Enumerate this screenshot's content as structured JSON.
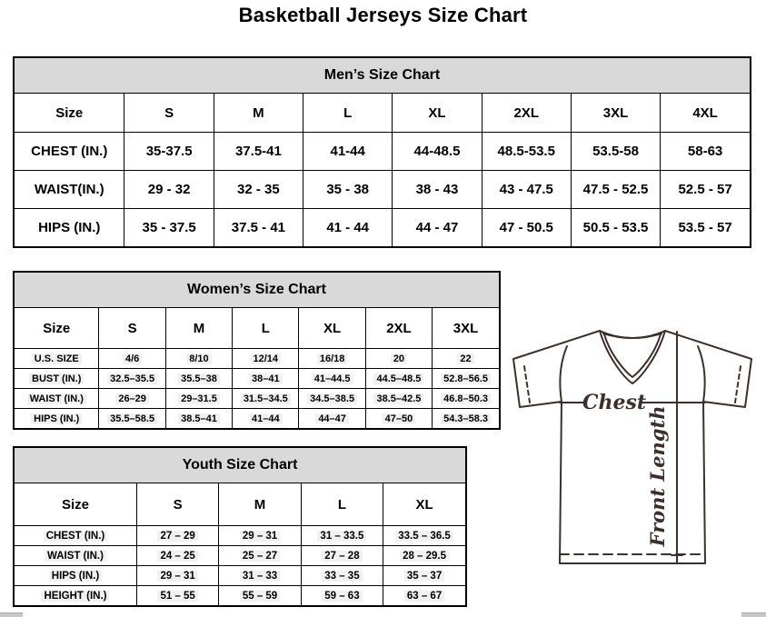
{
  "page": {
    "title": "Basketball Jerseys Size Chart"
  },
  "mens_table": {
    "title": "Men’s Size Chart",
    "header": [
      "Size",
      "S",
      "M",
      "L",
      "XL",
      "2XL",
      "3XL",
      "4XL"
    ],
    "rows": [
      {
        "label": "CHEST (IN.)",
        "values": [
          "35-37.5",
          "37.5-41",
          "41-44",
          "44-48.5",
          "48.5-53.5",
          "53.5-58",
          "58-63"
        ]
      },
      {
        "label": "WAIST(IN.)",
        "values": [
          "29 - 32",
          "32 - 35",
          "35 - 38",
          "38 - 43",
          "43 - 47.5",
          "47.5 - 52.5",
          "52.5 - 57"
        ]
      },
      {
        "label": "HIPS (IN.)",
        "values": [
          "35 - 37.5",
          "37.5 - 41",
          "41 - 44",
          "44 - 47",
          "47 - 50.5",
          "50.5 - 53.5",
          "53.5 - 57"
        ]
      }
    ]
  },
  "womens_table": {
    "title": "Women’s Size Chart",
    "header": [
      "Size",
      "S",
      "M",
      "L",
      "XL",
      "2XL",
      "3XL"
    ],
    "rows": [
      {
        "label": "U.S. SIZE",
        "values": [
          "4/6",
          "8/10",
          "12/14",
          "16/18",
          "20",
          "22"
        ]
      },
      {
        "label": "BUST (IN.)",
        "values": [
          "32.5–35.5",
          "35.5–38",
          "38–41",
          "41–44.5",
          "44.5–48.5",
          "52.8–56.5"
        ]
      },
      {
        "label": "WAIST (IN.)",
        "values": [
          "26–29",
          "29–31.5",
          "31.5–34.5",
          "34.5–38.5",
          "38.5–42.5",
          "46.8–50.3"
        ]
      },
      {
        "label": "HIPS (IN.)",
        "values": [
          "35.5–58.5",
          "38.5–41",
          "41–44",
          "44–47",
          "47–50",
          "54.3–58.3"
        ]
      }
    ]
  },
  "youth_table": {
    "title": "Youth Size Chart",
    "header": [
      "Size",
      "S",
      "M",
      "L",
      "XL"
    ],
    "rows": [
      {
        "label": "CHEST (IN.)",
        "values": [
          "27 – 29",
          "29 – 31",
          "31 – 33.5",
          "33.5 – 36.5"
        ]
      },
      {
        "label": "WAIST (IN.)",
        "values": [
          "24 – 25",
          "25 – 27",
          "27 – 28",
          "28 – 29.5"
        ]
      },
      {
        "label": "HIPS (IN.)",
        "values": [
          "29 – 31",
          "31 – 33",
          "33 – 35",
          "35 – 37"
        ]
      },
      {
        "label": "HEIGHT (IN.)",
        "values": [
          "51 – 55",
          "55 – 59",
          "59 – 63",
          "63 – 67"
        ]
      }
    ]
  },
  "diagram": {
    "chest_label": "Chest",
    "front_length_label": "Front Length"
  },
  "colors": {
    "table_header_bg": "#d9d9d9",
    "table_border": "#000000",
    "diagram_stroke": "#3b302b",
    "scrollbar_gray": "#c7c7c7"
  }
}
